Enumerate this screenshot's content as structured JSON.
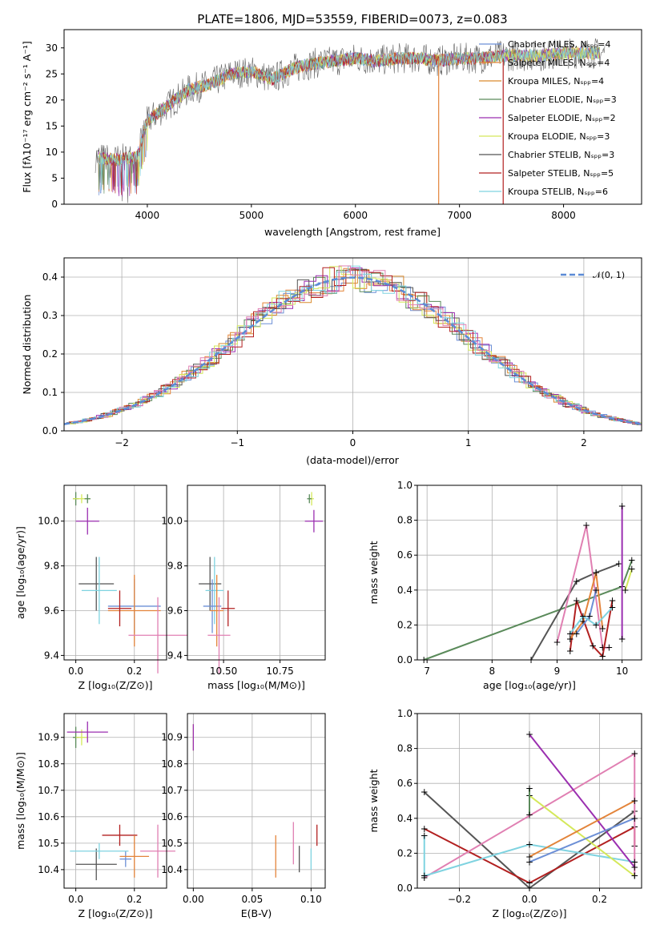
{
  "colors": {
    "chab_miles": "#6c8fd6",
    "salp_miles": "#e3843a",
    "krou_miles": "#d98a2e",
    "chab_elodie": "#5a8a5a",
    "salp_elodie": "#9b2fb0",
    "krou_elodie": "#d4e85a",
    "chab_stelib": "#555555",
    "salp_stelib": "#b22020",
    "krou_stelib": "#7fd3e0",
    "pink": "#e07fb2",
    "normal": "#5b8bd6"
  },
  "spectrum": {
    "title": "PLATE=1806, MJD=53559, FIBERID=0073, z=0.083",
    "xlabel": "wavelength [Angstrom, rest frame]",
    "ylabel": "Flux [fλ10⁻¹⁷ erg cm⁻² s⁻¹ A⁻¹]",
    "xlim": [
      3200,
      8750
    ],
    "ylim": [
      0,
      33.5
    ],
    "xticks": [
      "4000",
      "5000",
      "6000",
      "7000",
      "8000"
    ],
    "yticks": [
      "0",
      "5",
      "10",
      "15",
      "20",
      "25",
      "30"
    ],
    "legend": [
      "Chabrier MILES, Nₛₚₚ=4",
      "Salpeter MILES, Nₛₚₚ=4",
      "Kroupa MILES, Nₛₚₚ=4",
      "Chabrier ELODIE, Nₛₚₚ=3",
      "Salpeter ELODIE, Nₛₚₚ=2",
      "Kroupa ELODIE, Nₛₚₚ=3",
      "Chabrier STELIB, Nₛₚₚ=3",
      "Salpeter STELIB, Nₛₚₚ=5",
      "Kroupa STELIB, Nₛₚₚ=6"
    ]
  },
  "residuals": {
    "xlabel": "(data-model)/error",
    "ylabel": "Normed distribution",
    "xticks": [
      "−2",
      "−1",
      "0",
      "1",
      "2"
    ],
    "yticks": [
      "0.0",
      "0.1",
      "0.2",
      "0.3",
      "0.4"
    ],
    "legend": "𝒩(0, 1)"
  },
  "panels": {
    "age_Z": {
      "ylabel": "age  [log₁₀(age/yr)]",
      "xlabel": "Z [log₁₀(Z/Z⊙)]",
      "yticks": [
        "9.4",
        "9.6",
        "9.8",
        "10.0"
      ],
      "xticks": [
        "0.0",
        "0.2"
      ]
    },
    "age_mass": {
      "xlabel": "mass [log₁₀(M/M⊙)]",
      "yticks": [
        "9.4",
        "9.6",
        "9.8",
        "10.0"
      ],
      "xticks": [
        "10.50",
        "10.75"
      ]
    },
    "mw_age": {
      "ylabel": "mass weight",
      "xlabel": "age  [log₁₀(age/yr)]",
      "yticks": [
        "0.0",
        "0.2",
        "0.4",
        "0.6",
        "0.8",
        "1.0"
      ],
      "xticks": [
        "7",
        "8",
        "9",
        "10"
      ]
    },
    "mass_Z": {
      "ylabel": "mass [log₁₀(M/M⊙)]",
      "xlabel": "Z [log₁₀(Z/Z⊙)]",
      "yticks": [
        "10.4",
        "10.5",
        "10.6",
        "10.7",
        "10.8",
        "10.9"
      ],
      "xticks": [
        "0.0",
        "0.2"
      ]
    },
    "mass_ebv": {
      "xlabel": "E(B-V)",
      "yticks": [
        "10.4",
        "10.5",
        "10.6",
        "10.7",
        "10.8",
        "10.9"
      ],
      "xticks": [
        "0.00",
        "0.05",
        "0.10"
      ]
    },
    "mw_Z": {
      "ylabel": "mass weight",
      "xlabel": "Z [log₁₀(Z/Z⊙)]",
      "yticks": [
        "0.0",
        "0.2",
        "0.4",
        "0.6",
        "0.8",
        "1.0"
      ],
      "xticks": [
        "−0.2",
        "0.0",
        "0.2"
      ]
    }
  },
  "chart_data": [
    {
      "type": "line",
      "title": "PLATE=1806, MJD=53559, FIBERID=0073, z=0.083",
      "xlabel": "wavelength [Angstrom, rest frame]",
      "ylabel": "Flux",
      "xlim": [
        3200,
        8750
      ],
      "ylim": [
        0,
        33.5
      ],
      "series_anchor": {
        "x": [
          3500,
          3700,
          3900,
          4000,
          4200,
          4400,
          4600,
          4800,
          5000,
          5200,
          5400,
          5600,
          5800,
          6000,
          6200,
          6400,
          6600,
          6800,
          7000,
          7200,
          7400,
          7600,
          7800,
          8000,
          8200,
          8400
        ],
        "y": [
          9,
          8.5,
          9,
          16,
          19,
          22,
          23,
          25,
          25.5,
          24,
          26,
          27,
          27.5,
          28,
          27.5,
          28,
          28,
          27.5,
          28,
          28,
          28.5,
          28.5,
          28.5,
          29,
          29,
          29
        ]
      }
    },
    {
      "type": "line",
      "xlabel": "(data-model)/error",
      "ylabel": "Normed distribution",
      "xlim": [
        -2.5,
        2.5
      ],
      "ylim": [
        0,
        0.45
      ],
      "series": [
        {
          "name": "𝒩(0, 1)",
          "x": [
            -2.5,
            2.5
          ],
          "y": [
            0.018,
            0.018
          ]
        }
      ]
    },
    {
      "type": "scatter",
      "xlabel": "Z",
      "ylabel": "age",
      "points": [
        [
          0.0,
          10.1
        ],
        [
          0.02,
          10.1
        ],
        [
          0.04,
          10.1
        ],
        [
          0.04,
          10.0
        ],
        [
          0.07,
          9.72
        ],
        [
          0.08,
          9.69
        ],
        [
          0.2,
          9.62
        ],
        [
          0.2,
          9.6
        ],
        [
          0.15,
          9.61
        ],
        [
          0.28,
          9.49
        ]
      ]
    },
    {
      "type": "scatter",
      "xlabel": "mass",
      "ylabel": "age",
      "points": [
        [
          10.9,
          10.1
        ],
        [
          10.88,
          10.1
        ],
        [
          10.92,
          10.0
        ],
        [
          10.44,
          9.72
        ],
        [
          10.46,
          9.69
        ],
        [
          10.45,
          9.62
        ],
        [
          10.47,
          9.6
        ],
        [
          10.52,
          9.61
        ],
        [
          10.48,
          9.49
        ]
      ]
    },
    {
      "type": "line",
      "xlabel": "age",
      "ylabel": "mass weight",
      "xlim": [
        6.85,
        10.3
      ],
      "ylim": [
        0,
        1
      ]
    },
    {
      "type": "scatter",
      "xlabel": "Z",
      "ylabel": "mass",
      "points": [
        [
          0.0,
          10.92
        ],
        [
          0.04,
          10.92
        ],
        [
          0.15,
          10.53
        ],
        [
          0.07,
          10.42
        ],
        [
          0.2,
          10.45
        ],
        [
          0.28,
          10.47
        ],
        [
          0.08,
          10.47
        ]
      ]
    },
    {
      "type": "scatter",
      "xlabel": "E(B-V)",
      "ylabel": "mass",
      "points": [
        [
          0.0,
          10.9
        ],
        [
          0.07,
          10.45
        ],
        [
          0.085,
          10.5
        ],
        [
          0.09,
          10.45
        ],
        [
          0.1,
          10.44
        ],
        [
          0.105,
          10.53
        ]
      ]
    },
    {
      "type": "line",
      "xlabel": "Z",
      "ylabel": "mass weight",
      "xlim": [
        -0.32,
        0.32
      ],
      "ylim": [
        0,
        1
      ]
    }
  ]
}
